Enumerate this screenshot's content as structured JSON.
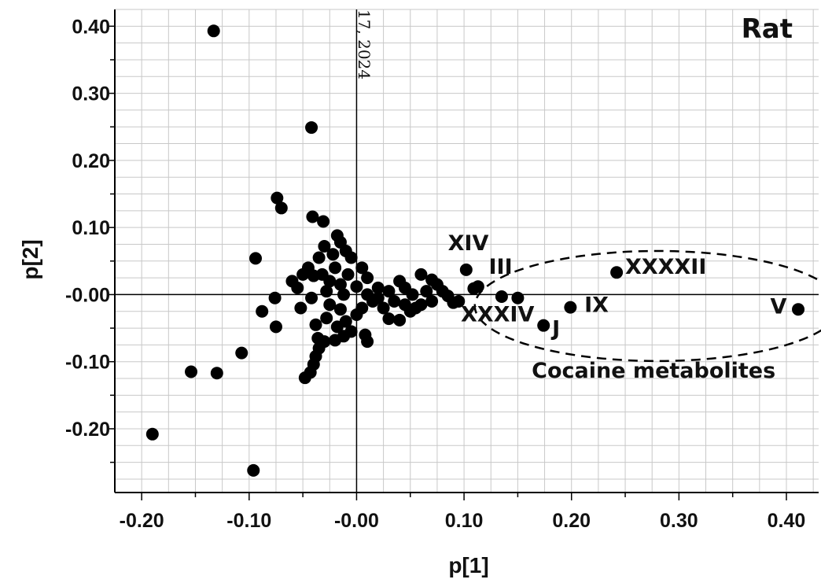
{
  "chart_data": {
    "type": "scatter",
    "title": "Rat",
    "xlabel": "p[1]",
    "ylabel": "p[2]",
    "xlim": [
      -0.225,
      0.43
    ],
    "ylim": [
      -0.295,
      0.425
    ],
    "grid": true,
    "x_ticks": [
      -0.2,
      -0.1,
      0.0,
      0.1,
      0.2,
      0.3,
      0.4
    ],
    "x_tick_labels": [
      "-0.20",
      "-0.10",
      "-0.00",
      "0.10",
      "0.20",
      "0.30",
      "0.40"
    ],
    "y_ticks": [
      0.4,
      0.3,
      0.2,
      0.1,
      0.0,
      -0.1,
      -0.2
    ],
    "y_tick_labels": [
      "0.40",
      "0.30",
      "0.20",
      "0.10",
      "-0.00",
      "-0.10",
      "-0.20"
    ],
    "watermark_text": "17, 2024",
    "series": [
      {
        "points": [
          [
            -0.133,
            0.393
          ],
          [
            -0.042,
            0.249
          ],
          [
            -0.074,
            0.144
          ],
          [
            -0.07,
            0.129
          ],
          [
            -0.041,
            0.116
          ],
          [
            -0.031,
            0.109
          ],
          [
            -0.094,
            0.054
          ],
          [
            -0.076,
            -0.005
          ],
          [
            -0.088,
            -0.025
          ],
          [
            -0.075,
            -0.048
          ],
          [
            -0.107,
            -0.087
          ],
          [
            -0.154,
            -0.115
          ],
          [
            -0.13,
            -0.117
          ],
          [
            -0.19,
            -0.208
          ],
          [
            -0.096,
            -0.262
          ],
          [
            -0.048,
            -0.124
          ],
          [
            -0.043,
            -0.116
          ],
          [
            -0.04,
            -0.104
          ],
          [
            -0.038,
            -0.092
          ],
          [
            -0.035,
            -0.08
          ],
          [
            -0.036,
            -0.065
          ],
          [
            -0.03,
            -0.07
          ],
          [
            -0.02,
            -0.068
          ],
          [
            -0.012,
            -0.062
          ],
          [
            -0.005,
            -0.055
          ],
          [
            0.008,
            -0.06
          ],
          [
            0.01,
            -0.07
          ],
          [
            0.03,
            -0.036
          ],
          [
            0.04,
            -0.038
          ],
          [
            0.05,
            -0.025
          ],
          [
            0.055,
            -0.02
          ],
          [
            -0.03,
            0.072
          ],
          [
            -0.018,
            0.088
          ],
          [
            -0.015,
            0.078
          ],
          [
            -0.01,
            0.065
          ],
          [
            -0.005,
            0.055
          ],
          [
            -0.035,
            0.055
          ],
          [
            -0.05,
            0.03
          ],
          [
            -0.055,
            0.01
          ],
          [
            -0.052,
            -0.02
          ],
          [
            -0.06,
            0.02
          ],
          [
            -0.045,
            0.04
          ],
          [
            0.005,
            0.04
          ],
          [
            0.01,
            0.025
          ],
          [
            0.02,
            0.01
          ],
          [
            0.03,
            0.005
          ],
          [
            0.04,
            0.02
          ],
          [
            0.045,
            0.01
          ],
          [
            0.06,
            0.03
          ],
          [
            0.065,
            0.005
          ],
          [
            0.07,
            0.022
          ],
          [
            0.075,
            0.015
          ],
          [
            0.08,
            0.005
          ],
          [
            0.085,
            -0.002
          ],
          [
            0.09,
            -0.012
          ],
          [
            0.095,
            -0.01
          ],
          [
            0.06,
            -0.015
          ],
          [
            0.07,
            -0.01
          ],
          [
            0.045,
            -0.015
          ],
          [
            0.035,
            -0.01
          ],
          [
            0.025,
            -0.02
          ],
          [
            0.015,
            -0.01
          ],
          [
            0.005,
            -0.02
          ],
          [
            -0.02,
            0.04
          ],
          [
            -0.025,
            0.02
          ],
          [
            -0.028,
            0.005
          ],
          [
            -0.025,
            -0.015
          ],
          [
            -0.028,
            -0.035
          ],
          [
            -0.018,
            -0.048
          ],
          [
            -0.01,
            -0.04
          ],
          [
            0.0,
            -0.03
          ],
          [
            0.01,
            0.0
          ],
          [
            0.02,
            -0.005
          ],
          [
            -0.012,
            0.0
          ],
          [
            -0.015,
            0.015
          ],
          [
            -0.008,
            0.03
          ],
          [
            -0.022,
            0.06
          ],
          [
            -0.04,
            0.028
          ],
          [
            -0.042,
            -0.005
          ],
          [
            -0.038,
            -0.045
          ],
          [
            -0.032,
            0.03
          ],
          [
            -0.015,
            -0.022
          ],
          [
            0.0,
            0.012
          ],
          [
            0.052,
            0.0
          ],
          [
            0.102,
            0.037
          ],
          [
            0.109,
            0.009
          ],
          [
            0.113,
            0.012
          ],
          [
            0.135,
            -0.003
          ],
          [
            0.15,
            -0.005
          ],
          [
            0.174,
            -0.046
          ],
          [
            0.199,
            -0.019
          ],
          [
            0.242,
            0.033
          ],
          [
            0.411,
            -0.022
          ]
        ]
      }
    ],
    "annotations": [
      {
        "text": "XIV",
        "x": 0.085,
        "y": 0.066
      },
      {
        "text": "III",
        "x": 0.123,
        "y": 0.031
      },
      {
        "text": "XXXXII",
        "x": 0.25,
        "y": 0.031
      },
      {
        "text": "XXXIV",
        "x": 0.097,
        "y": -0.04
      },
      {
        "text": "J",
        "x": 0.182,
        "y": -0.061
      },
      {
        "text": "IX",
        "x": 0.212,
        "y": -0.026
      },
      {
        "text": "V",
        "x": 0.385,
        "y": -0.028
      },
      {
        "text": "Cocaine metabolites",
        "x": 0.163,
        "y": -0.124
      }
    ],
    "ellipse": {
      "cx": 0.28,
      "cy": -0.017,
      "rx": 0.17,
      "ry": 0.082
    }
  }
}
